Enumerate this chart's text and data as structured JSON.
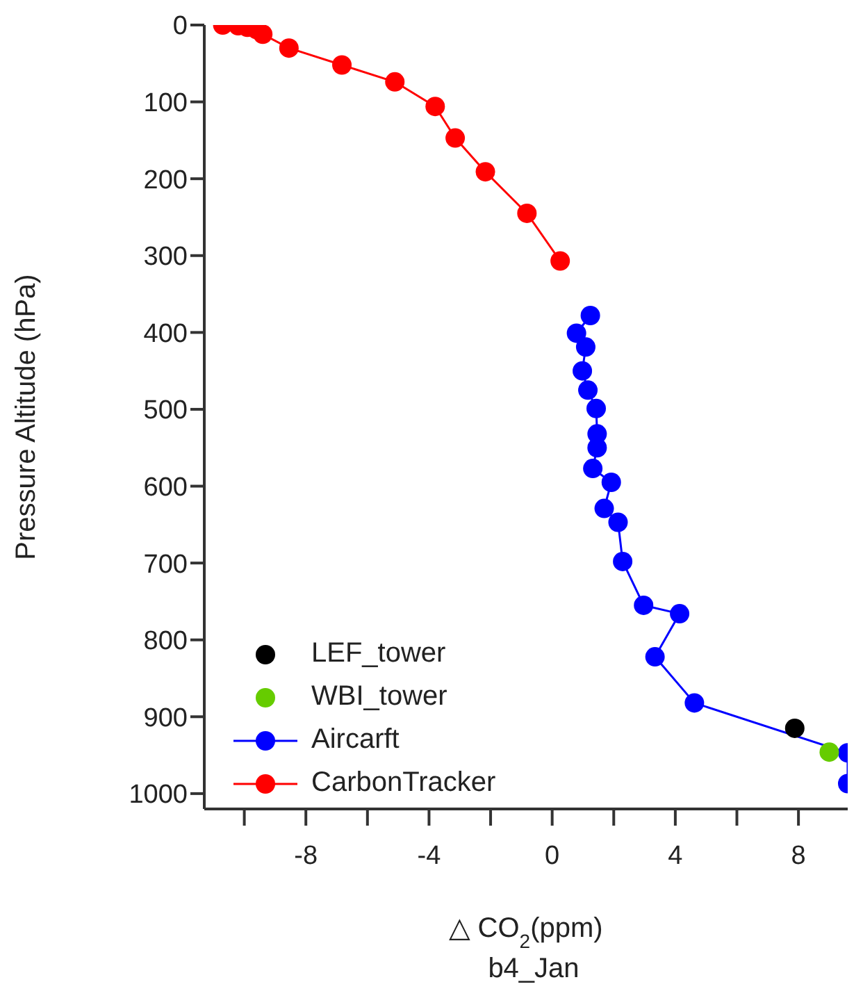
{
  "chart_data": {
    "type": "line",
    "xlabel": "△ CO$_{2}$(ppm)",
    "ylabel": "Pressure Altitude (hPa)",
    "annotations": [
      "b4_Jan"
    ],
    "xlim": [
      -11.3,
      9.6
    ],
    "xticks": [
      {
        "value": -10,
        "label": null
      },
      -8,
      {
        "value": -6,
        "label": null
      },
      -4,
      {
        "value": -2,
        "label": null
      },
      0,
      {
        "value": 2,
        "label": null
      },
      4,
      {
        "value": 6,
        "label": null
      },
      8
    ],
    "ylim": [
      1020,
      0
    ],
    "yticks": [
      0,
      100,
      200,
      300,
      400,
      500,
      600,
      700,
      800,
      900,
      1000
    ],
    "legend": "bottom left",
    "marker": "circle",
    "line_style": "solid",
    "series": [
      {
        "name": "LEF_tower",
        "type": "scatter",
        "color": "#000000",
        "x": [
          7.88
        ],
        "values": [
          915
        ]
      },
      {
        "name": "WBI_tower",
        "type": "scatter",
        "color": "#66cc00",
        "x": [
          9.0
        ],
        "values": [
          946
        ]
      },
      {
        "name": "Aircarft",
        "color": "#0000ff",
        "x": [
          1.24,
          0.79,
          1.09,
          0.98,
          1.16,
          1.43,
          1.46,
          1.46,
          1.32,
          1.92,
          1.69,
          2.14,
          2.29,
          2.97,
          4.14,
          3.34,
          4.62,
          9.6,
          9.6
        ],
        "values": [
          378,
          401,
          419,
          450,
          475,
          499,
          532,
          550,
          577,
          595,
          629,
          647,
          698,
          755,
          766,
          822,
          882,
          947,
          987
        ]
      },
      {
        "name": "CarbonTracker",
        "color": "#ff0000",
        "x": [
          -10.7,
          -10.2,
          -9.9,
          -9.6,
          -9.4,
          -8.55,
          -6.83,
          -5.11,
          -3.8,
          -3.15,
          -2.17,
          -0.82,
          0.26
        ],
        "values": [
          0,
          1,
          3,
          6,
          12,
          30,
          52,
          74,
          106,
          147,
          191,
          245,
          307
        ]
      }
    ]
  }
}
